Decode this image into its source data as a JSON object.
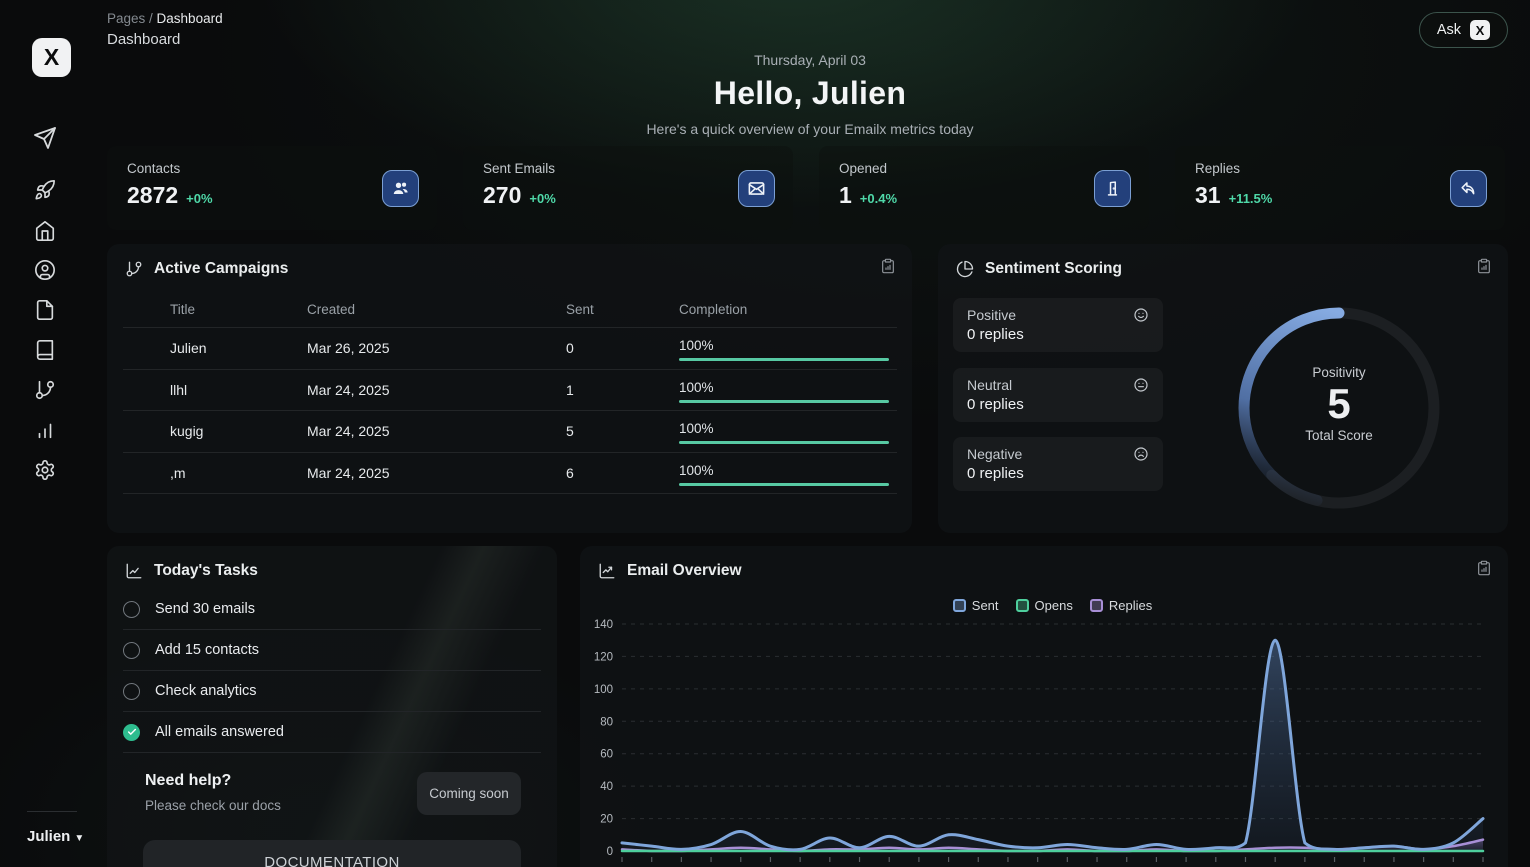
{
  "brand": {
    "logo_letter": "X"
  },
  "breadcrumb": {
    "section": "Pages",
    "separator": " / ",
    "current": "Dashboard"
  },
  "page_title": "Dashboard",
  "ask_button": {
    "label": "Ask"
  },
  "hero": {
    "date": "Thursday, April 03",
    "greeting": "Hello, Julien",
    "subtitle": "Here's a quick overview of your Emailx metrics today"
  },
  "sidebar": {
    "icons": [
      "send-icon",
      "rocket-icon",
      "home-icon",
      "user-circle-icon",
      "file-icon",
      "book-icon",
      "git-branch-icon",
      "bar-chart-icon",
      "settings-icon"
    ],
    "user": {
      "name": "Julien"
    }
  },
  "stats": [
    {
      "label": "Contacts",
      "value": "2872",
      "delta": "+0%",
      "icon": "contacts-icon"
    },
    {
      "label": "Sent Emails",
      "value": "270",
      "delta": "+0%",
      "icon": "mail-icon"
    },
    {
      "label": "Opened",
      "value": "1",
      "delta": "+0.4%",
      "icon": "door-icon"
    },
    {
      "label": "Replies",
      "value": "31",
      "delta": "+11.5%",
      "icon": "reply-icon"
    }
  ],
  "campaigns": {
    "title": "Active Campaigns",
    "columns": {
      "title": "Title",
      "created": "Created",
      "sent": "Sent",
      "completion": "Completion"
    },
    "rows": [
      {
        "title": "Julien",
        "created": "Mar 26, 2025",
        "sent": "0",
        "completion": "100%"
      },
      {
        "title": "llhl",
        "created": "Mar 24, 2025",
        "sent": "1",
        "completion": "100%"
      },
      {
        "title": "kugig",
        "created": "Mar 24, 2025",
        "sent": "5",
        "completion": "100%"
      },
      {
        "title": ",m",
        "created": "Mar 24, 2025",
        "sent": "6",
        "completion": "100%"
      }
    ]
  },
  "sentiment": {
    "title": "Sentiment Scoring",
    "items": [
      {
        "label": "Positive",
        "value": "0 replies",
        "icon": "smile-icon"
      },
      {
        "label": "Neutral",
        "value": "0 replies",
        "icon": "meh-icon"
      },
      {
        "label": "Negative",
        "value": "0 replies",
        "icon": "frown-icon"
      }
    ],
    "gauge": {
      "label_top": "Positivity",
      "score": "5",
      "label_bottom": "Total Score"
    }
  },
  "tasks": {
    "title": "Today's Tasks",
    "items": [
      {
        "label": "Send 30 emails",
        "done": false
      },
      {
        "label": "Add 15 contacts",
        "done": false
      },
      {
        "label": "Check analytics",
        "done": false
      },
      {
        "label": "All emails answered",
        "done": true
      }
    ],
    "help": {
      "title": "Need help?",
      "subtitle": "Please check our docs",
      "badge": "Coming soon",
      "cta": "DOCUMENTATION"
    }
  },
  "email_overview": {
    "title": "Email Overview"
  },
  "chart_data": {
    "type": "line",
    "title": "Email Overview",
    "xlabel": "",
    "ylabel": "",
    "ylim": [
      0,
      140
    ],
    "yticks": [
      0,
      20,
      40,
      60,
      80,
      100,
      120,
      140
    ],
    "grid": "dashed-horizontal",
    "legend_position": "top-center",
    "x_note": "30 evenly spaced time points; x-axis labels cut off at bottom of viewport",
    "series": [
      {
        "name": "Sent",
        "color": "#7fa6db",
        "area_fill": true,
        "values": [
          5,
          3,
          1,
          4,
          12,
          3,
          1,
          8,
          2,
          9,
          3,
          10,
          7,
          3,
          2,
          4,
          2,
          1,
          4,
          1,
          2,
          5,
          130,
          5,
          1,
          2,
          3,
          1,
          5,
          20
        ]
      },
      {
        "name": "Opens",
        "color": "#4ecf9d",
        "area_fill": false,
        "values": [
          0,
          0,
          0,
          0,
          0,
          0,
          0,
          0,
          0,
          0,
          0,
          0,
          0,
          0,
          0,
          0,
          0,
          0,
          0,
          0,
          0,
          0,
          0,
          0,
          0,
          0,
          0,
          0,
          0,
          0
        ]
      },
      {
        "name": "Replies",
        "color": "#a88fd6",
        "area_fill": true,
        "values": [
          1,
          0,
          0,
          1,
          2,
          1,
          0,
          1,
          1,
          2,
          1,
          2,
          1,
          0,
          0,
          1,
          0,
          0,
          1,
          0,
          0,
          1,
          2,
          2,
          1,
          2,
          3,
          1,
          3,
          7
        ]
      }
    ]
  },
  "colors": {
    "accent_green": "#4fd8a8",
    "progress_teal": "#57c9a3",
    "icon_button_bg": "#23407b",
    "icon_button_border": "#7b9fd4",
    "gauge_arc": "#86abe2",
    "done_check": "#2ebd8f"
  }
}
